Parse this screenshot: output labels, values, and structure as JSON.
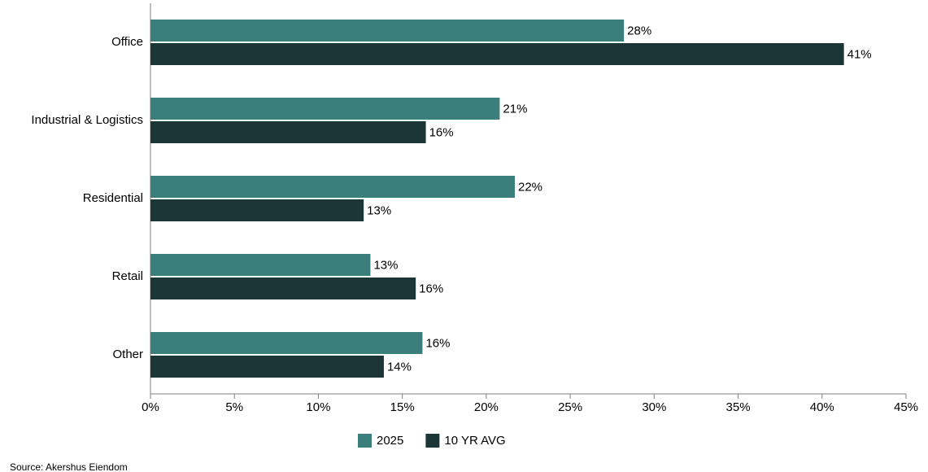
{
  "chart_data": {
    "type": "hbar",
    "categories": [
      "Office",
      "Industrial & Logistics",
      "Residential",
      "Retail",
      "Other"
    ],
    "series": [
      {
        "name": "2025",
        "color": "#3b7f7d",
        "values": [
          28.2,
          20.8,
          21.7,
          13.1,
          16.2
        ],
        "value_labels": [
          "28%",
          "21%",
          "22%",
          "13%",
          "16%"
        ]
      },
      {
        "name": "10 YR AVG",
        "color": "#1c3638",
        "values": [
          41.3,
          16.4,
          12.7,
          15.8,
          13.9
        ],
        "value_labels": [
          "41%",
          "16%",
          "13%",
          "16%",
          "14%"
        ]
      }
    ],
    "xlim": [
      0,
      45
    ],
    "xticks": [
      {
        "value": 0,
        "label": "0%"
      },
      {
        "value": 5,
        "label": "5%"
      },
      {
        "value": 10,
        "label": "10%"
      },
      {
        "value": 15,
        "label": "15%"
      },
      {
        "value": 20,
        "label": "20%"
      },
      {
        "value": 25,
        "label": "25%"
      },
      {
        "value": 30,
        "label": "30%"
      },
      {
        "value": 35,
        "label": "35%"
      },
      {
        "value": 40,
        "label": "40%"
      },
      {
        "value": 45,
        "label": "45%"
      }
    ],
    "legend": "bottom",
    "source": "Source: Akershus Eiendom"
  }
}
